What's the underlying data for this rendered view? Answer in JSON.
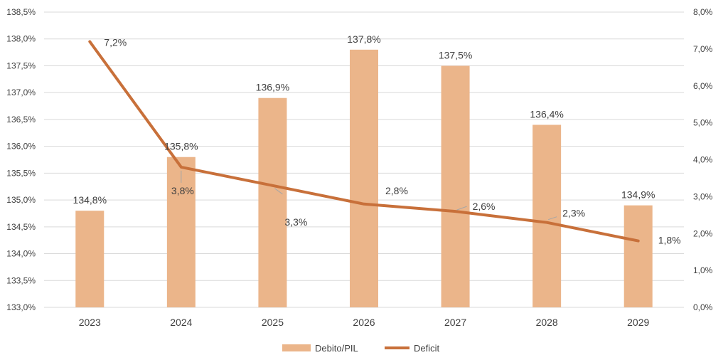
{
  "chart_data": {
    "type": "bar",
    "categories": [
      "2023",
      "2024",
      "2025",
      "2026",
      "2027",
      "2028",
      "2029"
    ],
    "series": [
      {
        "name": "Debito/PIL",
        "kind": "bar",
        "axis": "left",
        "color": "#EBB58A",
        "values": [
          134.8,
          135.8,
          136.9,
          137.8,
          137.5,
          136.4,
          134.9
        ],
        "labels": [
          "134,8%",
          "135,8%",
          "136,9%",
          "137,8%",
          "137,5%",
          "136,4%",
          "134,9%"
        ]
      },
      {
        "name": "Deficit",
        "kind": "line",
        "axis": "right",
        "color": "#C8703A",
        "values": [
          7.2,
          3.8,
          3.3,
          2.8,
          2.6,
          2.3,
          1.8
        ],
        "labels": [
          "7,2%",
          "3,8%",
          "3,3%",
          "2,8%",
          "2,6%",
          "2,3%",
          "1,8%"
        ]
      }
    ],
    "y_left": {
      "lim": [
        133.0,
        138.5
      ],
      "ticks": [
        "133,0%",
        "133,5%",
        "134,0%",
        "134,5%",
        "135,0%",
        "135,5%",
        "136,0%",
        "136,5%",
        "137,0%",
        "137,5%",
        "138,0%",
        "138,5%"
      ]
    },
    "y_right": {
      "lim": [
        0,
        8
      ],
      "ticks": [
        "0,0%",
        "1,0%",
        "2,0%",
        "3,0%",
        "4,0%",
        "5,0%",
        "6,0%",
        "7,0%",
        "8,0%"
      ]
    },
    "grid": true,
    "legend_position": "bottom-center",
    "colors": {
      "gridline": "#D9D9D9",
      "text": "#404040",
      "leader": "#A6A6A6"
    }
  }
}
